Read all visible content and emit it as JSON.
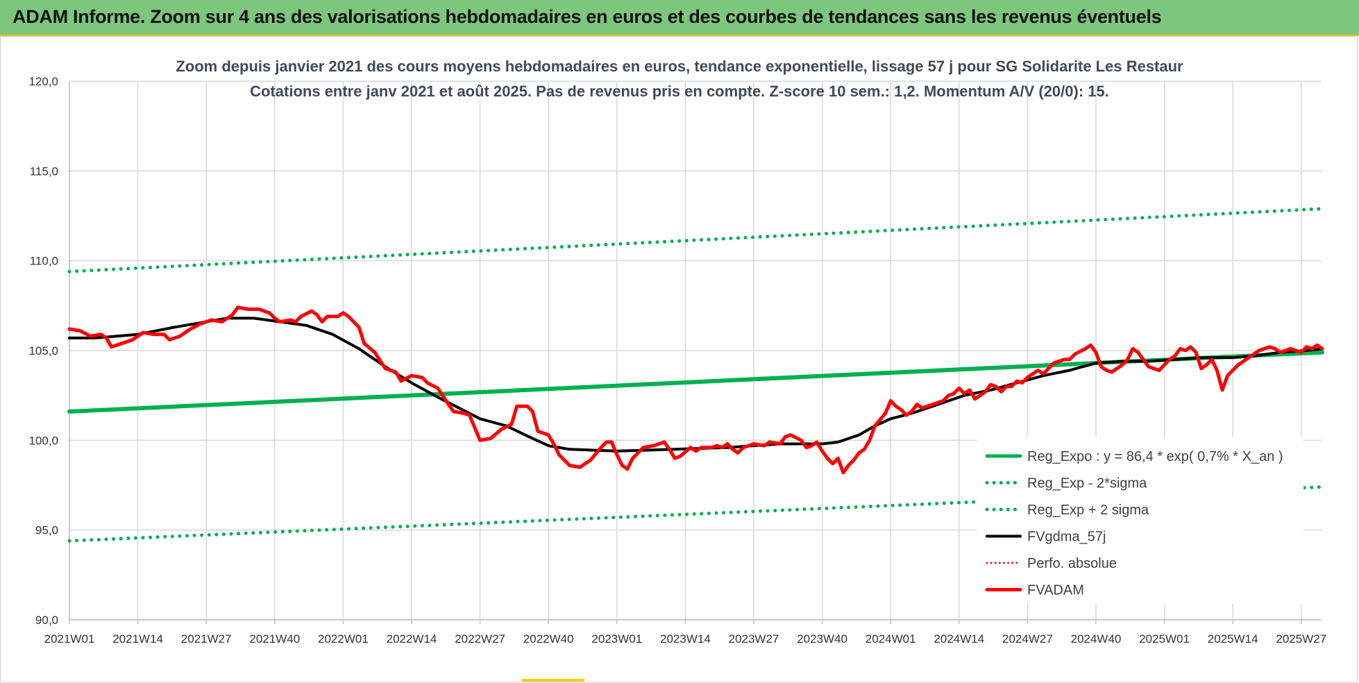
{
  "banner": {
    "title": "ADAM Informe. Zoom sur 4 ans des valorisations hebdomadaires en euros et des courbes de tendances sans les revenus éventuels",
    "bg_color": "#7dc67d"
  },
  "chart_data": {
    "type": "line",
    "title_lines": [
      "Zoom depuis janvier 2021 des cours moyens hebdomadaires en euros, tendance exponentielle, lissage 57 j pour SG Solidarite Les Restaur",
      "Cotations entre janv 2021 et août 2025.  Pas de revenus pris en compte. Z-score 10 sem.: 1,2. Momentum A/V (20/0): 15."
    ],
    "ylim": [
      90,
      120
    ],
    "y_ticks": [
      "90,0",
      "95,0",
      "100,0",
      "105,0",
      "110,0",
      "115,0",
      "120,0"
    ],
    "x_ticks": [
      "2021W01",
      "2021W14",
      "2021W27",
      "2021W40",
      "2022W01",
      "2022W14",
      "2022W27",
      "2022W40",
      "2023W01",
      "2023W14",
      "2023W27",
      "2023W40",
      "2024W01",
      "2024W14",
      "2024W27",
      "2024W40",
      "2025W01",
      "2025W14",
      "2025W27"
    ],
    "x_tick_weeks": [
      0,
      13,
      26,
      39,
      52,
      65,
      78,
      91,
      104,
      117,
      130,
      143,
      156,
      169,
      182,
      195,
      208,
      221,
      234
    ],
    "total_weeks": 239,
    "grid": true,
    "legend_position": "bottom-right",
    "series": [
      {
        "name": "Reg_Expo : y = 86,4 * exp( 0,7% *  X_an )",
        "color": "#00b050",
        "style": "solid",
        "width": 6,
        "points": [
          [
            0,
            101.6
          ],
          [
            238,
            104.9
          ]
        ]
      },
      {
        "name": "Reg_Exp - 2*sigma",
        "color": "#00b050",
        "style": "dotted",
        "width": 5,
        "points": [
          [
            0,
            94.4
          ],
          [
            238,
            97.4
          ]
        ]
      },
      {
        "name": "Reg_Exp + 2 sigma",
        "color": "#00b050",
        "style": "dotted",
        "width": 5,
        "points": [
          [
            0,
            109.4
          ],
          [
            238,
            112.9
          ]
        ]
      },
      {
        "name": "FVgdma_57j",
        "color": "#000000",
        "style": "solid",
        "width": 4,
        "points": [
          [
            0,
            105.7
          ],
          [
            5,
            105.7
          ],
          [
            13,
            105.9
          ],
          [
            20,
            106.3
          ],
          [
            26,
            106.6
          ],
          [
            30,
            106.8
          ],
          [
            35,
            106.8
          ],
          [
            40,
            106.6
          ],
          [
            45,
            106.4
          ],
          [
            50,
            105.9
          ],
          [
            55,
            105.1
          ],
          [
            60,
            104.1
          ],
          [
            65,
            103.2
          ],
          [
            70,
            102.4
          ],
          [
            74,
            101.8
          ],
          [
            78,
            101.2
          ],
          [
            83,
            100.8
          ],
          [
            88,
            100.1
          ],
          [
            91,
            99.7
          ],
          [
            95,
            99.5
          ],
          [
            104,
            99.4
          ],
          [
            115,
            99.5
          ],
          [
            125,
            99.6
          ],
          [
            135,
            99.8
          ],
          [
            143,
            99.8
          ],
          [
            146,
            99.9
          ],
          [
            150,
            100.3
          ],
          [
            153,
            100.8
          ],
          [
            156,
            101.2
          ],
          [
            160,
            101.5
          ],
          [
            165,
            102.0
          ],
          [
            170,
            102.5
          ],
          [
            175,
            102.8
          ],
          [
            180,
            103.2
          ],
          [
            185,
            103.6
          ],
          [
            190,
            103.9
          ],
          [
            195,
            104.3
          ],
          [
            200,
            104.4
          ],
          [
            205,
            104.4
          ],
          [
            210,
            104.5
          ],
          [
            215,
            104.6
          ],
          [
            221,
            104.6
          ],
          [
            225,
            104.7
          ],
          [
            230,
            104.9
          ],
          [
            235,
            105.0
          ],
          [
            238,
            105.1
          ]
        ]
      },
      {
        "name": "Perfo. absolue",
        "color": "#e02020",
        "style": "dotted",
        "width": 3,
        "points": []
      },
      {
        "name": "FVADAM",
        "color": "#ff0000",
        "style": "solid",
        "width": 5,
        "points": [
          [
            0,
            106.2
          ],
          [
            2,
            106.1
          ],
          [
            4,
            105.8
          ],
          [
            6,
            105.9
          ],
          [
            7,
            105.7
          ],
          [
            8,
            105.2
          ],
          [
            10,
            105.4
          ],
          [
            12,
            105.6
          ],
          [
            14,
            106.0
          ],
          [
            16,
            105.9
          ],
          [
            18,
            105.9
          ],
          [
            19,
            105.6
          ],
          [
            21,
            105.8
          ],
          [
            23,
            106.2
          ],
          [
            25,
            106.5
          ],
          [
            27,
            106.7
          ],
          [
            29,
            106.6
          ],
          [
            31,
            107.0
          ],
          [
            32,
            107.4
          ],
          [
            34,
            107.3
          ],
          [
            36,
            107.3
          ],
          [
            38,
            107.1
          ],
          [
            39,
            106.8
          ],
          [
            40,
            106.6
          ],
          [
            42,
            106.7
          ],
          [
            43,
            106.6
          ],
          [
            44,
            106.9
          ],
          [
            46,
            107.2
          ],
          [
            47,
            107.0
          ],
          [
            48,
            106.6
          ],
          [
            49,
            106.9
          ],
          [
            51,
            106.9
          ],
          [
            52,
            107.1
          ],
          [
            53,
            106.9
          ],
          [
            55,
            106.3
          ],
          [
            56,
            105.4
          ],
          [
            58,
            104.9
          ],
          [
            60,
            104.0
          ],
          [
            62,
            103.8
          ],
          [
            63,
            103.3
          ],
          [
            65,
            103.6
          ],
          [
            67,
            103.5
          ],
          [
            68,
            103.2
          ],
          [
            70,
            102.9
          ],
          [
            72,
            102.0
          ],
          [
            73,
            101.6
          ],
          [
            75,
            101.5
          ],
          [
            76,
            101.4
          ],
          [
            77,
            100.7
          ],
          [
            78,
            100.0
          ],
          [
            80,
            100.1
          ],
          [
            82,
            100.6
          ],
          [
            84,
            100.9
          ],
          [
            85,
            101.9
          ],
          [
            87,
            101.9
          ],
          [
            88,
            101.6
          ],
          [
            89,
            100.5
          ],
          [
            91,
            100.3
          ],
          [
            92,
            99.8
          ],
          [
            93,
            99.2
          ],
          [
            94,
            98.9
          ],
          [
            95,
            98.6
          ],
          [
            97,
            98.5
          ],
          [
            99,
            98.9
          ],
          [
            101,
            99.6
          ],
          [
            102,
            99.9
          ],
          [
            103,
            99.9
          ],
          [
            104,
            99.2
          ],
          [
            105,
            98.6
          ],
          [
            106,
            98.4
          ],
          [
            107,
            99.0
          ],
          [
            109,
            99.6
          ],
          [
            111,
            99.7
          ],
          [
            113,
            99.9
          ],
          [
            114,
            99.5
          ],
          [
            115,
            99.0
          ],
          [
            116,
            99.1
          ],
          [
            118,
            99.6
          ],
          [
            119,
            99.4
          ],
          [
            120,
            99.6
          ],
          [
            122,
            99.6
          ],
          [
            123,
            99.7
          ],
          [
            124,
            99.6
          ],
          [
            125,
            99.8
          ],
          [
            126,
            99.5
          ],
          [
            127,
            99.3
          ],
          [
            128,
            99.6
          ],
          [
            130,
            99.8
          ],
          [
            132,
            99.7
          ],
          [
            133,
            99.9
          ],
          [
            135,
            99.8
          ],
          [
            136,
            100.2
          ],
          [
            137,
            100.3
          ],
          [
            139,
            100.0
          ],
          [
            140,
            99.6
          ],
          [
            141,
            99.7
          ],
          [
            142,
            99.9
          ],
          [
            143,
            99.4
          ],
          [
            144,
            99.0
          ],
          [
            145,
            98.7
          ],
          [
            146,
            99.0
          ],
          [
            147,
            98.2
          ],
          [
            148,
            98.6
          ],
          [
            149,
            98.9
          ],
          [
            150,
            99.3
          ],
          [
            151,
            99.5
          ],
          [
            152,
            100.0
          ],
          [
            153,
            100.8
          ],
          [
            155,
            101.5
          ],
          [
            156,
            102.2
          ],
          [
            157,
            101.9
          ],
          [
            158,
            101.7
          ],
          [
            159,
            101.4
          ],
          [
            160,
            101.6
          ],
          [
            161,
            102.0
          ],
          [
            162,
            101.8
          ],
          [
            164,
            102.0
          ],
          [
            166,
            102.2
          ],
          [
            167,
            102.5
          ],
          [
            168,
            102.6
          ],
          [
            169,
            102.9
          ],
          [
            170,
            102.6
          ],
          [
            171,
            102.8
          ],
          [
            172,
            102.3
          ],
          [
            173,
            102.5
          ],
          [
            174,
            102.7
          ],
          [
            175,
            103.1
          ],
          [
            176,
            103.0
          ],
          [
            177,
            102.7
          ],
          [
            178,
            103.0
          ],
          [
            179,
            103.0
          ],
          [
            180,
            103.3
          ],
          [
            181,
            103.2
          ],
          [
            182,
            103.5
          ],
          [
            183,
            103.7
          ],
          [
            184,
            103.9
          ],
          [
            185,
            103.7
          ],
          [
            186,
            104.0
          ],
          [
            187,
            104.3
          ],
          [
            189,
            104.5
          ],
          [
            190,
            104.5
          ],
          [
            191,
            104.8
          ],
          [
            193,
            105.1
          ],
          [
            194,
            105.3
          ],
          [
            195,
            104.9
          ],
          [
            196,
            104.1
          ],
          [
            197,
            103.9
          ],
          [
            198,
            103.8
          ],
          [
            200,
            104.2
          ],
          [
            201,
            104.5
          ],
          [
            202,
            105.1
          ],
          [
            203,
            104.9
          ],
          [
            205,
            104.1
          ],
          [
            207,
            103.9
          ],
          [
            209,
            104.5
          ],
          [
            210,
            104.7
          ],
          [
            211,
            105.1
          ],
          [
            212,
            105.0
          ],
          [
            213,
            105.2
          ],
          [
            214,
            104.9
          ],
          [
            215,
            104.0
          ],
          [
            216,
            104.2
          ],
          [
            217,
            104.5
          ],
          [
            218,
            103.9
          ],
          [
            219,
            102.8
          ],
          [
            220,
            103.6
          ],
          [
            222,
            104.2
          ],
          [
            224,
            104.6
          ],
          [
            226,
            105.0
          ],
          [
            228,
            105.2
          ],
          [
            229,
            105.1
          ],
          [
            230,
            104.9
          ],
          [
            232,
            105.1
          ],
          [
            233,
            105.0
          ],
          [
            234,
            104.9
          ],
          [
            235,
            105.2
          ],
          [
            236,
            105.1
          ],
          [
            237,
            105.3
          ],
          [
            238,
            105.1
          ]
        ]
      }
    ]
  }
}
